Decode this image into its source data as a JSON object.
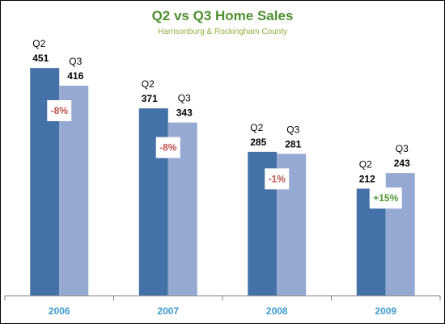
{
  "chart_data": {
    "type": "bar",
    "title": "Q2 vs Q3 Home Sales",
    "subtitle": "Harrisonburg & Rockingham County",
    "categories": [
      "2006",
      "2007",
      "2008",
      "2009"
    ],
    "series": [
      {
        "name": "Q2",
        "values": [
          451,
          371,
          285,
          212
        ]
      },
      {
        "name": "Q3",
        "values": [
          416,
          343,
          281,
          243
        ]
      }
    ],
    "annotations": [
      "-8%",
      "-8%",
      "-1%",
      "+15%"
    ],
    "ylim": [
      0,
      540
    ],
    "grid": false,
    "legend": "none"
  },
  "colors": {
    "title": "#4f8f2f",
    "subtitle": "#8db33c",
    "q2": "#4472a8",
    "q3": "#95a9d3",
    "axis": "#808080",
    "tick": "#3e9bd0",
    "negative": "#c0504d",
    "positive": "#4f9a32"
  }
}
